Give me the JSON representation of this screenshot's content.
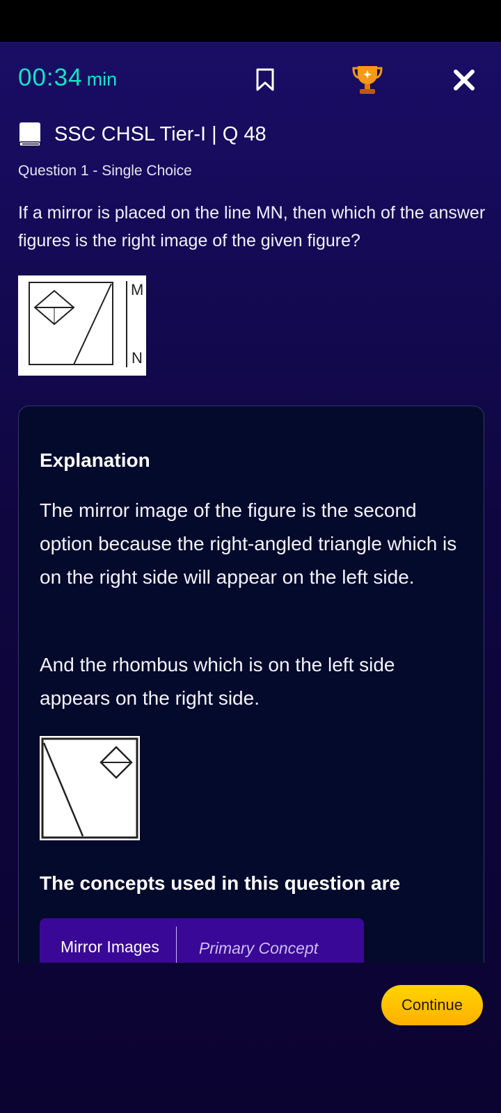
{
  "header": {
    "timer_value": "00:34",
    "timer_unit": "min",
    "icons": [
      "bookmark-icon",
      "trophy-icon",
      "close-icon"
    ]
  },
  "breadcrumb": {
    "icon": "book-icon",
    "text": "SSC CHSL Tier-I | Q 48"
  },
  "question": {
    "type_label": "Question 1 - Single Choice",
    "text": "If a mirror is placed on the line MN, then which of the answer figures is the right image of the given figure?",
    "figure_labels": {
      "top": "M",
      "bottom": "N"
    }
  },
  "explanation": {
    "title": "Explanation",
    "paragraph1": "The mirror image of the figure is the second option because the right-angled triangle which is on the right side will appear on the left side.",
    "paragraph2": "And the rhombus which is on the left side appears on the right side.",
    "concepts_heading": "The concepts used in this question are",
    "concepts": [
      {
        "name": "Mirror Images",
        "role": "Primary Concept"
      }
    ]
  },
  "footer": {
    "continue_label": "Continue"
  },
  "colors": {
    "timer": "#17e3c4",
    "chip": "#3a0896",
    "button": "#ffc400",
    "trophy": "#f59a16"
  }
}
